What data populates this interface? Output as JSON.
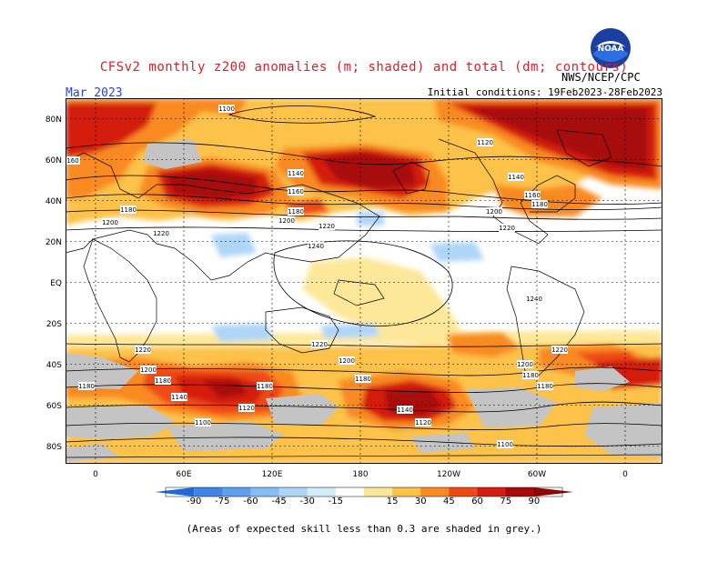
{
  "header": {
    "title": "CFSv2 monthly z200 anomalies (m; shaded) and total (dm; contours)",
    "month": "Mar 2023",
    "initial_conditions": "Initial conditions: 19Feb2023-28Feb2023",
    "agency": "NWS/NCEP/CPC",
    "logo_text": "NOAA"
  },
  "map": {
    "lat_labels": [
      "80N",
      "60N",
      "40N",
      "20N",
      "EQ",
      "20S",
      "40S",
      "60S",
      "80S"
    ],
    "lon_labels": [
      "0",
      "60E",
      "120E",
      "180",
      "120W",
      "60W",
      "0"
    ],
    "contour_labels": [
      "1100",
      "1120",
      "1140",
      "1160",
      "1180",
      "1200",
      "1220",
      "1240"
    ]
  },
  "colorbar": {
    "ticks": [
      "-90",
      "-75",
      "-60",
      "-45",
      "-30",
      "-15",
      "15",
      "30",
      "45",
      "60",
      "75",
      "90"
    ],
    "colors": [
      "#1e6ad8",
      "#3f86e6",
      "#5fa0f0",
      "#86bdf6",
      "#afd6f8",
      "#d2ecfa",
      "#ffffff",
      "#fde89a",
      "#fcc24a",
      "#f98a22",
      "#ee4a14",
      "#d41e10",
      "#a80a0a",
      "#8c0606"
    ]
  },
  "footer": {
    "note": "(Areas of expected skill less than 0.3 are shaded in grey.)"
  }
}
